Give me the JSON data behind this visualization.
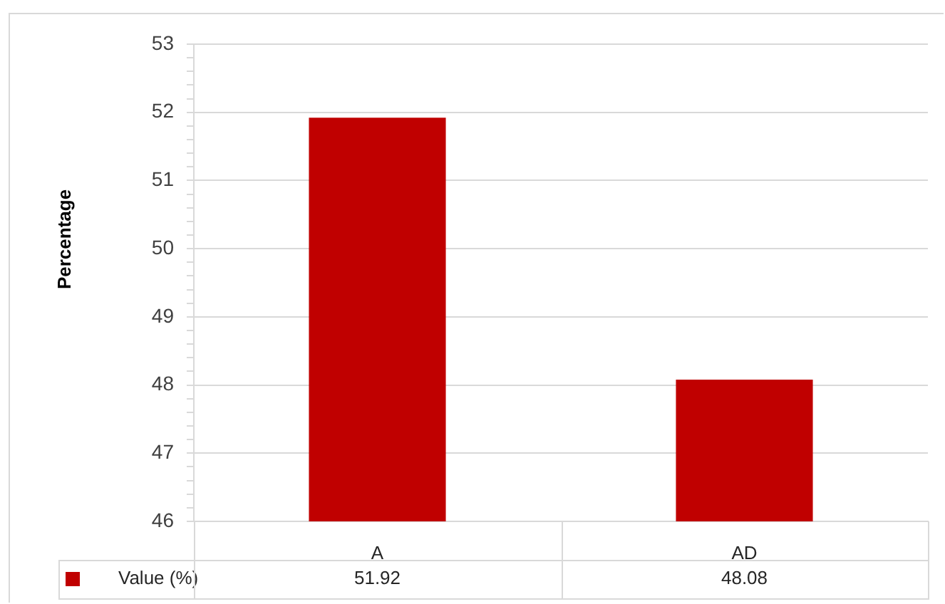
{
  "chart_data": {
    "type": "bar",
    "ylabel": "Percentage",
    "categories": [
      "A",
      "AD"
    ],
    "series": [
      {
        "name": "Value (%)",
        "color": "#c00000",
        "values": [
          51.92,
          48.08
        ]
      }
    ],
    "ylim": [
      46,
      53
    ],
    "yticks": [
      46,
      {
        "value": 46.2,
        "label": null
      },
      {
        "value": 46.4,
        "label": null
      },
      {
        "value": 46.6,
        "label": null
      },
      {
        "value": 46.8,
        "label": null
      },
      47,
      {
        "value": 47.2,
        "label": null
      },
      {
        "value": 47.4,
        "label": null
      },
      {
        "value": 47.6,
        "label": null
      },
      {
        "value": 47.8,
        "label": null
      },
      48,
      {
        "value": 48.2,
        "label": null
      },
      {
        "value": 48.4,
        "label": null
      },
      {
        "value": 48.6,
        "label": null
      },
      {
        "value": 48.8,
        "label": null
      },
      49,
      {
        "value": 49.2,
        "label": null
      },
      {
        "value": 49.4,
        "label": null
      },
      {
        "value": 49.6,
        "label": null
      },
      {
        "value": 49.8,
        "label": null
      },
      50,
      {
        "value": 50.2,
        "label": null
      },
      {
        "value": 50.4,
        "label": null
      },
      {
        "value": 50.6,
        "label": null
      },
      {
        "value": 50.8,
        "label": null
      },
      51,
      {
        "value": 51.2,
        "label": null
      },
      {
        "value": 51.4,
        "label": null
      },
      {
        "value": 51.6,
        "label": null
      },
      {
        "value": 51.8,
        "label": null
      },
      52,
      {
        "value": 52.2,
        "label": null
      },
      {
        "value": 52.4,
        "label": null
      },
      {
        "value": 52.6,
        "label": null
      },
      {
        "value": 52.8,
        "label": null
      },
      53
    ],
    "grid": "y",
    "legend": "bottom",
    "data_labels": true
  }
}
